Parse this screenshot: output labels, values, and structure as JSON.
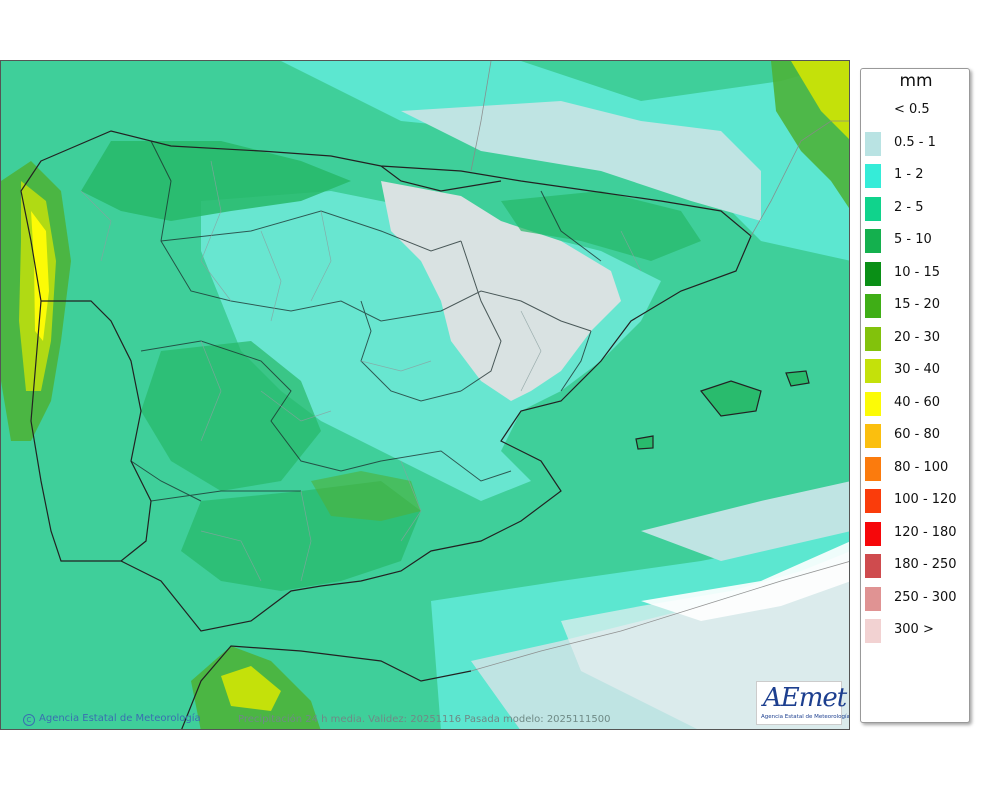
{
  "map": {
    "copyright": "Agencia Estatal de Meteorología",
    "caption": "Precipitación 24 h media. Validez: 20251116 Pasada modelo: 2025111500",
    "logo_text": "AEmet",
    "logo_subtitle": "Agencia Estatal de Meteorología"
  },
  "legend": {
    "unit": "mm",
    "items": [
      {
        "label": "< 0.5",
        "color": "#ffffff"
      },
      {
        "label": "0.5 - 1",
        "color": "#b9e3e3"
      },
      {
        "label": "1 - 2",
        "color": "#35ecd8"
      },
      {
        "label": "2 - 5",
        "color": "#10d38c"
      },
      {
        "label": "5 - 10",
        "color": "#14b04e"
      },
      {
        "label": "10 - 15",
        "color": "#0a8f16"
      },
      {
        "label": "15 - 20",
        "color": "#3fae16"
      },
      {
        "label": "20 - 30",
        "color": "#82c20c"
      },
      {
        "label": "30 - 40",
        "color": "#c4e10a"
      },
      {
        "label": "40 - 60",
        "color": "#fcfb06"
      },
      {
        "label": "60 - 80",
        "color": "#fbbf0e"
      },
      {
        "label": "80 - 100",
        "color": "#fb7b0d"
      },
      {
        "label": "100 - 120",
        "color": "#fa3c0b"
      },
      {
        "label": "120 - 180",
        "color": "#f6070a"
      },
      {
        "label": "180 - 250",
        "color": "#cf4b4e"
      },
      {
        "label": "250 - 300",
        "color": "#e09393"
      },
      {
        "label": "300 >",
        "color": "#f2d2d2"
      }
    ]
  }
}
